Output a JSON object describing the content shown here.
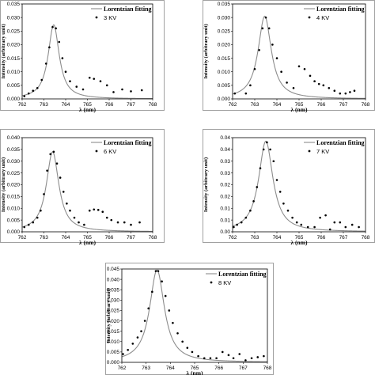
{
  "chart_data": [
    {
      "type": "scatter",
      "xlabel": "λ (nm)",
      "ylabel": "Intensity (arbitrary unit)",
      "xlim": [
        762,
        768
      ],
      "xticks": [
        "762",
        "763",
        "764",
        "765",
        "766",
        "767",
        "768"
      ],
      "ylim": [
        0,
        0.035
      ],
      "yticks": [
        "0.000",
        "0.005",
        "0.010",
        "0.015",
        "0.020",
        "0.025",
        "0.030",
        "0.035"
      ],
      "legend": [
        "Lorentzian fitting",
        "3 KV"
      ],
      "fit": {
        "name": "Lorentzian fitting",
        "center": 763.45,
        "fwhm": 0.62,
        "amplitude": 0.0273
      },
      "series": [
        {
          "name": "3 KV",
          "x": [
            762.1,
            762.3,
            762.5,
            762.7,
            762.9,
            763.1,
            763.25,
            763.4,
            763.55,
            763.7,
            763.85,
            764.0,
            764.2,
            764.5,
            764.8,
            765.1,
            765.3,
            765.6,
            765.9,
            766.2,
            766.6,
            767.0,
            767.5
          ],
          "y": [
            0.001,
            0.002,
            0.003,
            0.004,
            0.007,
            0.013,
            0.019,
            0.0265,
            0.026,
            0.021,
            0.015,
            0.01,
            0.0065,
            0.0045,
            0.0035,
            0.0078,
            0.0074,
            0.0065,
            0.005,
            0.0025,
            0.0035,
            0.0028,
            0.0032
          ]
        }
      ]
    },
    {
      "type": "scatter",
      "xlabel": "λ (nm)",
      "ylabel": "Intensity (arbitrary unit)",
      "xlim": [
        762,
        768
      ],
      "xticks": [
        "762",
        "763",
        "764",
        "765",
        "766",
        "767",
        "768"
      ],
      "ylim": [
        0,
        0.035
      ],
      "yticks": [
        "0.000",
        "0.005",
        "0.010",
        "0.015",
        "0.020",
        "0.025",
        "0.030",
        "0.035"
      ],
      "legend": [
        "Lorentzian fitting",
        "4 KV"
      ],
      "fit": {
        "name": "Lorentzian fitting",
        "center": 763.45,
        "fwhm": 0.72,
        "amplitude": 0.0305
      },
      "series": [
        {
          "name": "4 KV",
          "x": [
            762.1,
            762.6,
            762.8,
            763.0,
            763.2,
            763.35,
            763.5,
            763.65,
            763.8,
            764.0,
            764.2,
            764.45,
            764.75,
            765.0,
            765.25,
            765.5,
            765.7,
            765.9,
            766.1,
            766.35,
            766.6,
            766.85,
            767.1,
            767.3,
            767.5
          ],
          "y": [
            0.002,
            0.002,
            0.005,
            0.011,
            0.018,
            0.026,
            0.03,
            0.026,
            0.02,
            0.015,
            0.01,
            0.006,
            0.004,
            0.012,
            0.011,
            0.0085,
            0.0065,
            0.0055,
            0.005,
            0.004,
            0.003,
            0.002,
            0.002,
            0.0025,
            0.003
          ]
        }
      ]
    },
    {
      "type": "scatter",
      "xlabel": "λ (nm)",
      "ylabel": "Intensity (arbitrary unit)",
      "xlim": [
        762,
        768
      ],
      "xticks": [
        "762",
        "763",
        "764",
        "765",
        "766",
        "767",
        "768"
      ],
      "ylim": [
        0,
        0.04
      ],
      "yticks": [
        "0.000",
        "0.005",
        "0.010",
        "0.015",
        "0.020",
        "0.025",
        "0.030",
        "0.035",
        "0.040"
      ],
      "legend": [
        "Lorentzian fitting",
        "6 KV"
      ],
      "fit": {
        "name": "Lorentzian fitting",
        "center": 763.4,
        "fwhm": 0.7,
        "amplitude": 0.034
      },
      "series": [
        {
          "name": "6 KV",
          "x": [
            762.1,
            762.3,
            762.5,
            762.7,
            762.85,
            763.0,
            763.15,
            763.3,
            763.45,
            763.6,
            763.75,
            763.9,
            764.05,
            764.2,
            764.4,
            764.6,
            764.85,
            765.1,
            765.3,
            765.5,
            765.7,
            765.9,
            766.1,
            766.4,
            766.7,
            767.0,
            767.4
          ],
          "y": [
            0.002,
            0.003,
            0.004,
            0.006,
            0.009,
            0.016,
            0.026,
            0.033,
            0.034,
            0.029,
            0.023,
            0.017,
            0.012,
            0.009,
            0.006,
            0.004,
            0.003,
            0.009,
            0.0095,
            0.0093,
            0.0085,
            0.006,
            0.005,
            0.004,
            0.004,
            0.003,
            0.004
          ]
        }
      ]
    },
    {
      "type": "scatter",
      "xlabel": "λ (nm)",
      "ylabel": "Intensity (arbitrary unit)",
      "xlim": [
        762,
        768
      ],
      "xticks": [
        "762",
        "763",
        "764",
        "765",
        "766",
        "767",
        "768"
      ],
      "ylim": [
        0,
        0.04
      ],
      "yticks": [
        "0.00",
        "0.01",
        "0.01",
        "0.02",
        "0.02",
        "0.03",
        "0.03",
        "0.04",
        "0.04"
      ],
      "legend": [
        "Lorentzian fitting",
        "7 KV"
      ],
      "fit": {
        "name": "Lorentzian fitting",
        "center": 763.5,
        "fwhm": 0.78,
        "amplitude": 0.0385
      },
      "series": [
        {
          "name": "7 KV",
          "x": [
            762.05,
            762.2,
            762.4,
            762.6,
            762.8,
            762.95,
            763.1,
            763.25,
            763.4,
            763.55,
            763.7,
            763.85,
            764.0,
            764.15,
            764.3,
            764.5,
            764.7,
            764.9,
            765.1,
            765.4,
            765.7,
            765.95,
            766.2,
            766.4,
            766.6,
            766.85,
            767.1,
            767.4,
            767.7
          ],
          "y": [
            0.002,
            0.003,
            0.004,
            0.006,
            0.009,
            0.013,
            0.019,
            0.027,
            0.035,
            0.038,
            0.035,
            0.03,
            0.022,
            0.017,
            0.012,
            0.009,
            0.006,
            0.004,
            0.003,
            0.002,
            0.002,
            0.006,
            0.007,
            0.001,
            0.004,
            0.004,
            0.002,
            0.003,
            0.002
          ]
        }
      ]
    },
    {
      "type": "scatter",
      "xlabel": "λ (nm)",
      "ylabel": "Intensity (arbitrary unit)",
      "xlim": [
        762,
        768
      ],
      "xticks": [
        "762",
        "763",
        "764",
        "765",
        "766",
        "767",
        "768"
      ],
      "ylim": [
        0,
        0.045
      ],
      "yticks": [
        "0.000",
        "0.005",
        "0.010",
        "0.015",
        "0.020",
        "0.025",
        "0.030",
        "0.035",
        "0.040",
        "0.045"
      ],
      "legend": [
        "Lorentzian fitting",
        "8 KV"
      ],
      "fit": {
        "name": "Lorentzian fitting",
        "center": 763.45,
        "fwhm": 0.74,
        "amplitude": 0.0445
      },
      "series": [
        {
          "name": "8 KV",
          "x": [
            762.05,
            762.25,
            762.45,
            762.65,
            762.8,
            762.95,
            763.1,
            763.25,
            763.4,
            763.5,
            763.65,
            763.8,
            763.95,
            764.1,
            764.3,
            764.5,
            764.7,
            764.9,
            765.15,
            765.4,
            765.65,
            765.9,
            766.15,
            766.4,
            766.6,
            766.85,
            767.1,
            767.35,
            767.6,
            767.85
          ],
          "y": [
            0.004,
            0.006,
            0.009,
            0.012,
            0.015,
            0.02,
            0.026,
            0.034,
            0.044,
            0.044,
            0.039,
            0.032,
            0.025,
            0.019,
            0.014,
            0.01,
            0.007,
            0.005,
            0.003,
            0.002,
            0.002,
            0.002,
            0.005,
            0.0035,
            0.002,
            0.004,
            0.001,
            0.002,
            0.0025,
            0.003
          ]
        }
      ]
    }
  ]
}
